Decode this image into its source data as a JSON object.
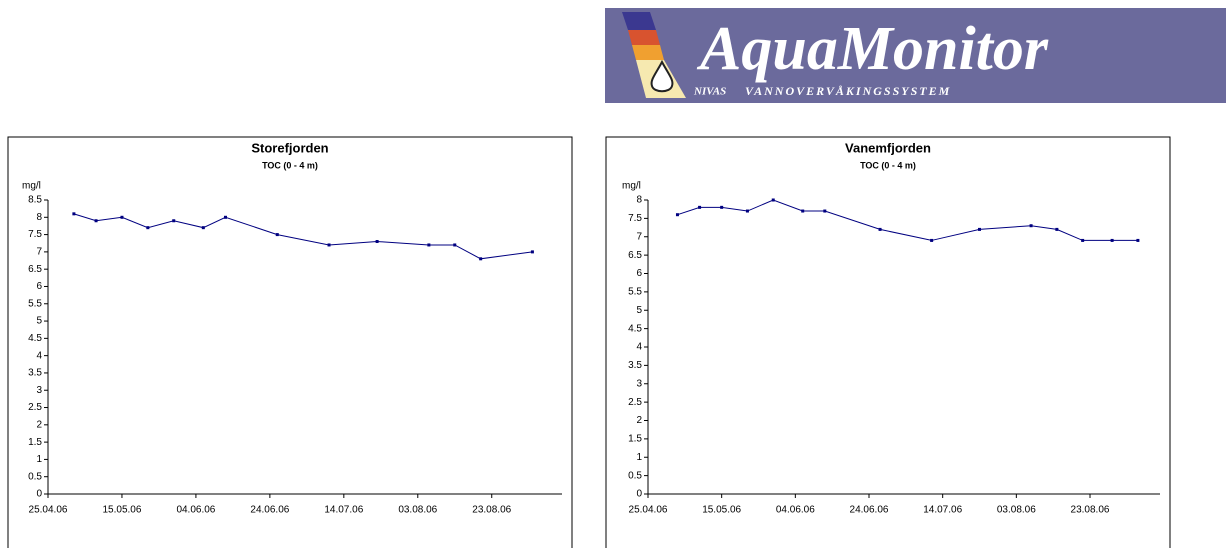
{
  "header": {
    "logo_title": "AquaMonitor",
    "logo_left": "NIVAS",
    "logo_right": "VANNOVERVÅKINGSSYSTEM"
  },
  "chart_data": [
    {
      "type": "line",
      "title": "Storefjorden",
      "subtitle": "TOC (0 - 4 m)",
      "y_label": "mg/l",
      "x": [
        "02.05.06",
        "08.05.06",
        "15.05.06",
        "22.05.06",
        "29.05.06",
        "06.06.06",
        "12.06.06",
        "26.06.06",
        "10.07.06",
        "23.07.06",
        "06.08.06",
        "13.08.06",
        "20.08.06",
        "03.09.06"
      ],
      "series": [
        {
          "name": "TOC",
          "color": "#000080",
          "values": [
            8.1,
            7.9,
            8.0,
            7.7,
            7.9,
            7.7,
            8.0,
            7.5,
            7.2,
            7.3,
            7.2,
            7.2,
            6.8,
            7.0
          ]
        }
      ],
      "xlim": [
        "25.04.06",
        "11.09.06"
      ],
      "xticks": [
        "25.04.06",
        "15.05.06",
        "04.06.06",
        "24.06.06",
        "14.07.06",
        "03.08.06",
        "23.08.06"
      ],
      "ylim": [
        0,
        8.5
      ],
      "yticks": [
        0,
        0.5,
        1,
        1.5,
        2,
        2.5,
        3,
        3.5,
        4,
        4.5,
        5,
        5.5,
        6,
        6.5,
        7,
        7.5,
        8,
        8.5
      ]
    },
    {
      "type": "line",
      "title": "Vanemfjorden",
      "subtitle": "TOC (0 - 4 m)",
      "y_label": "mg/l",
      "x": [
        "03.05.06",
        "09.05.06",
        "15.05.06",
        "22.05.06",
        "29.05.06",
        "06.06.06",
        "12.06.06",
        "27.06.06",
        "11.07.06",
        "24.07.06",
        "07.08.06",
        "14.08.06",
        "21.08.06",
        "29.08.06",
        "05.09.06"
      ],
      "series": [
        {
          "name": "TOC",
          "color": "#000080",
          "values": [
            7.6,
            7.8,
            7.8,
            7.7,
            8.0,
            7.7,
            7.7,
            7.2,
            6.9,
            7.2,
            7.3,
            7.2,
            6.9,
            6.9,
            6.9
          ]
        }
      ],
      "xlim": [
        "25.04.06",
        "11.09.06"
      ],
      "xticks": [
        "25.04.06",
        "15.05.06",
        "04.06.06",
        "24.06.06",
        "14.07.06",
        "03.08.06",
        "23.08.06"
      ],
      "ylim": [
        0,
        8
      ],
      "yticks": [
        0,
        0.5,
        1,
        1.5,
        2,
        2.5,
        3,
        3.5,
        4,
        4.5,
        5,
        5.5,
        6,
        6.5,
        7,
        7.5,
        8
      ]
    }
  ]
}
